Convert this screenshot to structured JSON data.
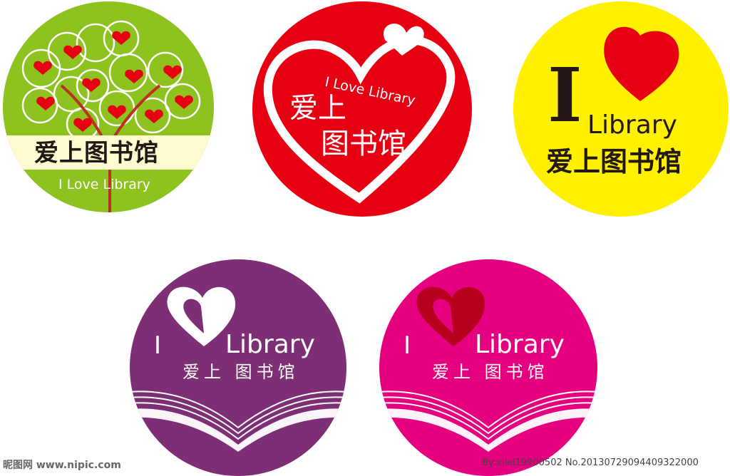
{
  "badges": [
    {
      "theme": "green-tree",
      "colors": {
        "background": "#8dc21f",
        "foliage": "#8dc21f",
        "heart": "#e60012",
        "banner": "#fffbd0",
        "trunk": "#b8321d"
      },
      "cn": "爱上图书馆",
      "en": "I Love Library"
    },
    {
      "theme": "red-heart",
      "colors": {
        "background": "#e60012",
        "heart_outline": "#ffffff"
      },
      "en": "I Love Library",
      "cn_line1": "爱上",
      "cn_line2": "图书馆"
    },
    {
      "theme": "yellow",
      "colors": {
        "background": "#fff100",
        "heart": "#e60012",
        "text": "#231815"
      },
      "i": "I",
      "en": "Library",
      "cn": "爱上图书馆"
    },
    {
      "theme": "purple-book",
      "colors": {
        "background": "#7d2e74",
        "heart": "#ffffff"
      },
      "i": "I",
      "en": "Library",
      "cn": "爱上 图书馆"
    },
    {
      "theme": "pink-book",
      "colors": {
        "background": "#e4007f",
        "heart": "#b7001e"
      },
      "i": "I",
      "en": "Library",
      "cn": "爱上 图书馆"
    }
  ],
  "watermark": {
    "left": "昵图网 www.nipic.com",
    "right": "By:xilei19900502  No.20130729094409322000"
  }
}
